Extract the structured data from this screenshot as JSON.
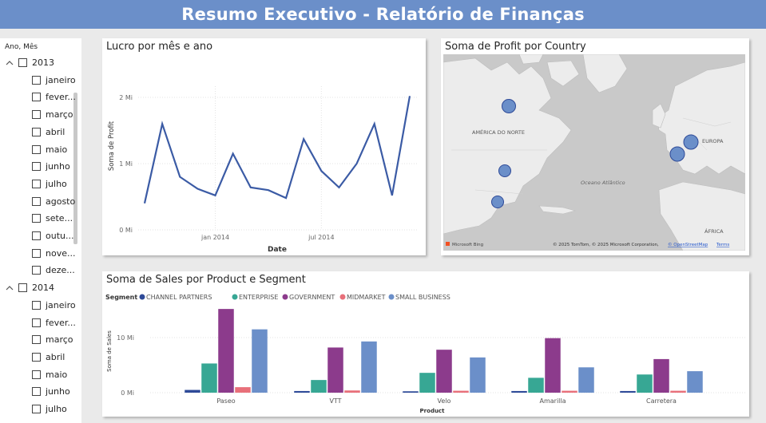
{
  "header": {
    "title": "Resumo Executivo - Relatório de Finanças"
  },
  "slicer": {
    "title": "Ano, Mês",
    "groups": [
      {
        "year": "2013",
        "months": [
          "janeiro",
          "fever...",
          "março",
          "abril",
          "maio",
          "junho",
          "julho",
          "agosto",
          "sete...",
          "outu...",
          "nove...",
          "deze..."
        ]
      },
      {
        "year": "2014",
        "months": [
          "janeiro",
          "fever...",
          "março",
          "abril",
          "maio",
          "junho",
          "julho"
        ]
      }
    ]
  },
  "line_panel": {
    "title": "Lucro por mês e ano"
  },
  "map_panel": {
    "title": "Soma de Profit por Country",
    "labels": {
      "north_america": "AMÉRICA DO NORTE",
      "europe": "EUROPA",
      "ocean": "Oceano Atlântico",
      "africa": "ÁFRICA"
    },
    "attribution": "© 2025 TomTom, © 2025 Microsoft Corporation,",
    "osm_link": "© OpenStreetMap",
    "terms_link": "Terms",
    "logo": "Microsoft Bing"
  },
  "bar_panel": {
    "title": "Soma de Sales por Product e Segment"
  },
  "chart_data": [
    {
      "type": "line",
      "title": "Lucro por mês e ano",
      "xlabel": "Date",
      "ylabel": "Soma de Profit",
      "x_tick_labels": [
        "jan 2014",
        "jul 2014"
      ],
      "y_tick_labels": [
        "0 Mi",
        "1 Mi",
        "2 Mi"
      ],
      "ylim": [
        0,
        2.0
      ],
      "x": [
        "2013-09",
        "2013-10",
        "2013-11",
        "2013-12",
        "2014-01",
        "2014-02",
        "2014-03",
        "2014-04",
        "2014-05",
        "2014-06",
        "2014-07",
        "2014-08",
        "2014-09",
        "2014-10",
        "2014-11",
        "2014-12"
      ],
      "values": [
        0.4,
        1.6,
        0.8,
        0.62,
        0.52,
        1.15,
        0.64,
        0.6,
        0.48,
        1.37,
        0.89,
        0.64,
        1.0,
        1.6,
        0.52,
        2.02
      ],
      "color": "#3b5ba5",
      "grid": true
    },
    {
      "type": "bar",
      "title": "Soma de Sales por Product e Segment",
      "legend_title": "Segment",
      "legend_position": "top-left",
      "xlabel": "Product",
      "ylabel": "Soma de Sales",
      "y_tick_labels": [
        "0 Mi",
        "10 Mi"
      ],
      "ylim": [
        0,
        16
      ],
      "categories": [
        "Paseo",
        "VTT",
        "Velo",
        "Amarilla",
        "Carretera"
      ],
      "series": [
        {
          "name": "CHANNEL PARTNERS",
          "color": "#2e4a98",
          "values": [
            0.5,
            0.3,
            0.25,
            0.3,
            0.3
          ]
        },
        {
          "name": "ENTERPRISE",
          "color": "#37a794",
          "values": [
            5.3,
            2.3,
            3.6,
            2.7,
            3.3
          ]
        },
        {
          "name": "GOVERNMENT",
          "color": "#8c3b8c",
          "values": [
            15.2,
            8.2,
            7.8,
            9.9,
            6.1
          ]
        },
        {
          "name": "MIDMARKET",
          "color": "#e8707a",
          "values": [
            1.0,
            0.4,
            0.35,
            0.35,
            0.35
          ]
        },
        {
          "name": "SMALL BUSINESS",
          "color": "#6b8fc9",
          "values": [
            11.5,
            9.3,
            6.4,
            4.6,
            3.9
          ]
        }
      ]
    }
  ]
}
